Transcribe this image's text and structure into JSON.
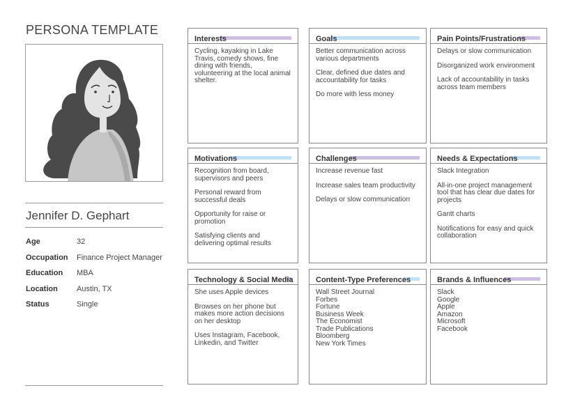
{
  "page_title": "PERSONA TEMPLATE",
  "persona": {
    "name": "Jennifer D. Gephart",
    "attributes": [
      {
        "label": "Age",
        "value": "32"
      },
      {
        "label": "Occupation",
        "value": "Finance Project Manager"
      },
      {
        "label": "Education",
        "value": "MBA"
      },
      {
        "label": "Location",
        "value": "Austin, TX"
      },
      {
        "label": "Status",
        "value": "Single"
      }
    ]
  },
  "colors": {
    "purple_highlight": "#cdbfe3",
    "blue_highlight": "#bfe0f6"
  },
  "cards": [
    {
      "title": "Interests",
      "highlight": "purple",
      "items": [
        "Cycling, kayaking in Lake Travis, comedy shows, fine dining with friends, volunteering at the local animal shelter."
      ]
    },
    {
      "title": "Goals",
      "highlight": "blue",
      "items": [
        "Better communication across various departments",
        "Clear, defined due dates and accountability for tasks",
        "Do more with less money"
      ]
    },
    {
      "title": "Pain Points/Frustrations",
      "highlight": "purple",
      "items": [
        "Delays or slow communication",
        "Disorganized work environment",
        "Lack of accountability in tasks across team members"
      ]
    },
    {
      "title": "Motivations",
      "highlight": "blue",
      "items": [
        "Recognition from board, supervisors and peers",
        "Personal reward from successful deals",
        "Opportunity for raise or promotion",
        "Satisfying clients and delivering optimal results"
      ]
    },
    {
      "title": "Challenges",
      "highlight": "purple",
      "items": [
        "Increase revenue fast",
        "Increase sales team productivity",
        "Delays or slow communication"
      ]
    },
    {
      "title": "Needs & Expectations",
      "highlight": "blue",
      "items": [
        "Slack Integration",
        "All-in-one project management tool that has clear due dates for projects",
        "Gantt charts",
        "Notifications for easy and quick collaboration"
      ]
    },
    {
      "title": "Technology & Social Media",
      "highlight": "purple",
      "items": [
        "She uses Apple devices",
        "Browses on her phone but makes more action decisions on her desktop",
        "Uses Instagram, Facebook, Linkedin, and Twitter"
      ]
    },
    {
      "title": "Content-Type Preferences",
      "highlight": "blue",
      "list": true,
      "items": [
        "Wall Street Journal",
        "Forbes",
        "Fortune",
        "Business Week",
        "The Economist",
        "Trade Publications",
        "Bloomberg",
        "New York Times"
      ]
    },
    {
      "title": "Brands & Influences",
      "highlight": "purple",
      "list": true,
      "items": [
        "Slack",
        "Google",
        "Apple",
        "Amazon",
        "Microsoft",
        "Facebook"
      ]
    }
  ]
}
